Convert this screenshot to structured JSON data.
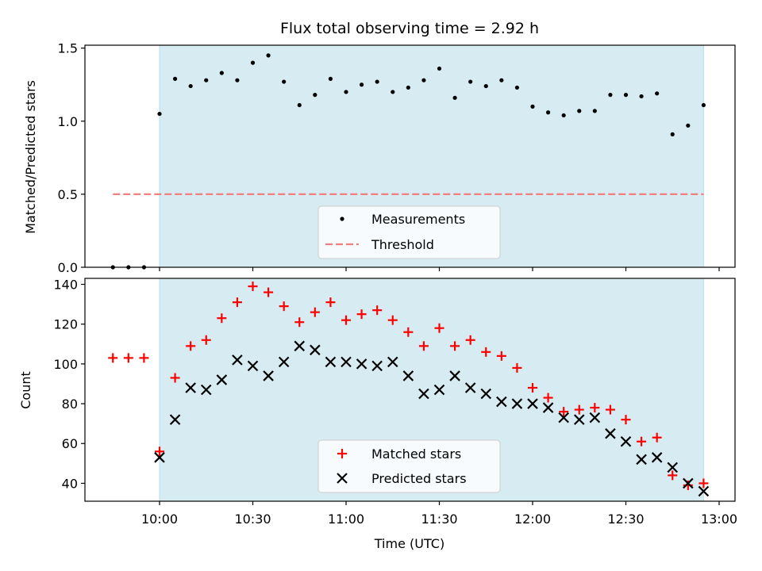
{
  "chart_data": [
    {
      "type": "scatter",
      "title": "Flux total observing time = 2.92 h",
      "xlabel": "",
      "ylabel": "Matched/Predicted stars",
      "ylim": [
        0,
        1.52
      ],
      "yticks": [
        "0.0",
        "0.5",
        "1.0",
        "1.5"
      ],
      "highlight_span": [
        "10:00",
        "12:55"
      ],
      "legend_position": "lower-center",
      "threshold": {
        "name": "Threshold",
        "value": 0.5,
        "x_start": "09:45",
        "x_end": "12:55",
        "color": "#f08080"
      },
      "series": [
        {
          "name": "Measurements",
          "color": "#000000",
          "points": [
            [
              "09:45",
              0.0
            ],
            [
              "09:50",
              0.0
            ],
            [
              "09:55",
              0.0
            ],
            [
              "10:00",
              1.05
            ],
            [
              "10:05",
              1.29
            ],
            [
              "10:10",
              1.24
            ],
            [
              "10:15",
              1.28
            ],
            [
              "10:20",
              1.33
            ],
            [
              "10:25",
              1.28
            ],
            [
              "10:30",
              1.4
            ],
            [
              "10:35",
              1.45
            ],
            [
              "10:40",
              1.27
            ],
            [
              "10:45",
              1.11
            ],
            [
              "10:50",
              1.18
            ],
            [
              "10:55",
              1.29
            ],
            [
              "11:00",
              1.2
            ],
            [
              "11:05",
              1.25
            ],
            [
              "11:10",
              1.27
            ],
            [
              "11:15",
              1.2
            ],
            [
              "11:20",
              1.23
            ],
            [
              "11:25",
              1.28
            ],
            [
              "11:30",
              1.36
            ],
            [
              "11:35",
              1.16
            ],
            [
              "11:40",
              1.27
            ],
            [
              "11:45",
              1.24
            ],
            [
              "11:50",
              1.28
            ],
            [
              "11:55",
              1.23
            ],
            [
              "12:00",
              1.1
            ],
            [
              "12:05",
              1.06
            ],
            [
              "12:10",
              1.04
            ],
            [
              "12:15",
              1.07
            ],
            [
              "12:20",
              1.07
            ],
            [
              "12:25",
              1.18
            ],
            [
              "12:30",
              1.18
            ],
            [
              "12:35",
              1.17
            ],
            [
              "12:40",
              1.19
            ],
            [
              "12:45",
              0.91
            ],
            [
              "12:50",
              0.97
            ],
            [
              "12:55",
              1.11
            ]
          ]
        }
      ]
    },
    {
      "type": "scatter",
      "title": "",
      "xlabel": "Time (UTC)",
      "ylabel": "Count",
      "ylim": [
        31,
        143
      ],
      "yticks": [
        40,
        60,
        80,
        100,
        120,
        140
      ],
      "xticks": [
        "10:00",
        "10:30",
        "11:00",
        "11:30",
        "12:00",
        "12:30",
        "13:00"
      ],
      "highlight_span": [
        "10:00",
        "12:55"
      ],
      "legend_position": "lower-center",
      "series": [
        {
          "name": "Matched stars",
          "color": "#ff0000",
          "marker": "+",
          "points": [
            [
              "09:45",
              103
            ],
            [
              "09:50",
              103
            ],
            [
              "09:55",
              103
            ],
            [
              "10:00",
              56
            ],
            [
              "10:05",
              93
            ],
            [
              "10:10",
              109
            ],
            [
              "10:15",
              112
            ],
            [
              "10:20",
              123
            ],
            [
              "10:25",
              131
            ],
            [
              "10:30",
              139
            ],
            [
              "10:35",
              136
            ],
            [
              "10:40",
              129
            ],
            [
              "10:45",
              121
            ],
            [
              "10:50",
              126
            ],
            [
              "10:55",
              131
            ],
            [
              "11:00",
              122
            ],
            [
              "11:05",
              125
            ],
            [
              "11:10",
              127
            ],
            [
              "11:15",
              122
            ],
            [
              "11:20",
              116
            ],
            [
              "11:25",
              109
            ],
            [
              "11:30",
              118
            ],
            [
              "11:35",
              109
            ],
            [
              "11:40",
              112
            ],
            [
              "11:45",
              106
            ],
            [
              "11:50",
              104
            ],
            [
              "11:55",
              98
            ],
            [
              "12:00",
              88
            ],
            [
              "12:05",
              83
            ],
            [
              "12:10",
              76
            ],
            [
              "12:15",
              77
            ],
            [
              "12:20",
              78
            ],
            [
              "12:25",
              77
            ],
            [
              "12:30",
              72
            ],
            [
              "12:35",
              61
            ],
            [
              "12:40",
              63
            ],
            [
              "12:45",
              44
            ],
            [
              "12:50",
              39
            ],
            [
              "12:55",
              40
            ]
          ]
        },
        {
          "name": "Predicted stars",
          "color": "#000000",
          "marker": "x",
          "points": [
            [
              "10:00",
              53
            ],
            [
              "10:05",
              72
            ],
            [
              "10:10",
              88
            ],
            [
              "10:15",
              87
            ],
            [
              "10:20",
              92
            ],
            [
              "10:25",
              102
            ],
            [
              "10:30",
              99
            ],
            [
              "10:35",
              94
            ],
            [
              "10:40",
              101
            ],
            [
              "10:45",
              109
            ],
            [
              "10:50",
              107
            ],
            [
              "10:55",
              101
            ],
            [
              "11:00",
              101
            ],
            [
              "11:05",
              100
            ],
            [
              "11:10",
              99
            ],
            [
              "11:15",
              101
            ],
            [
              "11:20",
              94
            ],
            [
              "11:25",
              85
            ],
            [
              "11:30",
              87
            ],
            [
              "11:35",
              94
            ],
            [
              "11:40",
              88
            ],
            [
              "11:45",
              85
            ],
            [
              "11:50",
              81
            ],
            [
              "11:55",
              80
            ],
            [
              "12:00",
              80
            ],
            [
              "12:05",
              78
            ],
            [
              "12:10",
              73
            ],
            [
              "12:15",
              72
            ],
            [
              "12:20",
              73
            ],
            [
              "12:25",
              65
            ],
            [
              "12:30",
              61
            ],
            [
              "12:35",
              52
            ],
            [
              "12:40",
              53
            ],
            [
              "12:45",
              48
            ],
            [
              "12:50",
              40
            ],
            [
              "12:55",
              36
            ]
          ]
        }
      ]
    }
  ]
}
